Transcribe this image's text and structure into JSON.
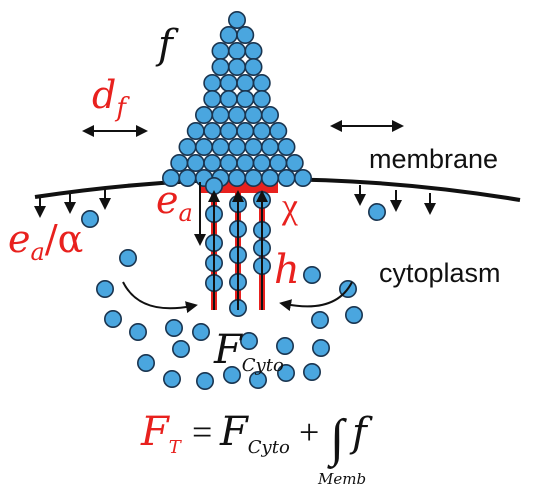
{
  "labels": {
    "f": "f",
    "d": "d",
    "d_sub": "f",
    "membrane": "membrane",
    "e": "e",
    "e_sub": "a",
    "chi": "χ",
    "ea_alpha_e": "e",
    "ea_alpha_sub": "a",
    "ea_alpha_rest": "/α",
    "h": "h",
    "cytoplasm": "cytoplasm",
    "fcyto_F": "F",
    "fcyto_sub": "Cyto"
  },
  "equation": {
    "lhs": "F",
    "lhs_sub": "T",
    "equals": "=",
    "term1": "F",
    "term1_sub": "Cyto",
    "plus": "+",
    "integral": "∫",
    "integrand": "f",
    "lower_limit": "Memb"
  },
  "colors": {
    "red": "#e8211e",
    "dot_fill": "#4aa6df",
    "dot_stroke": "#1a3550",
    "black": "#111111"
  }
}
